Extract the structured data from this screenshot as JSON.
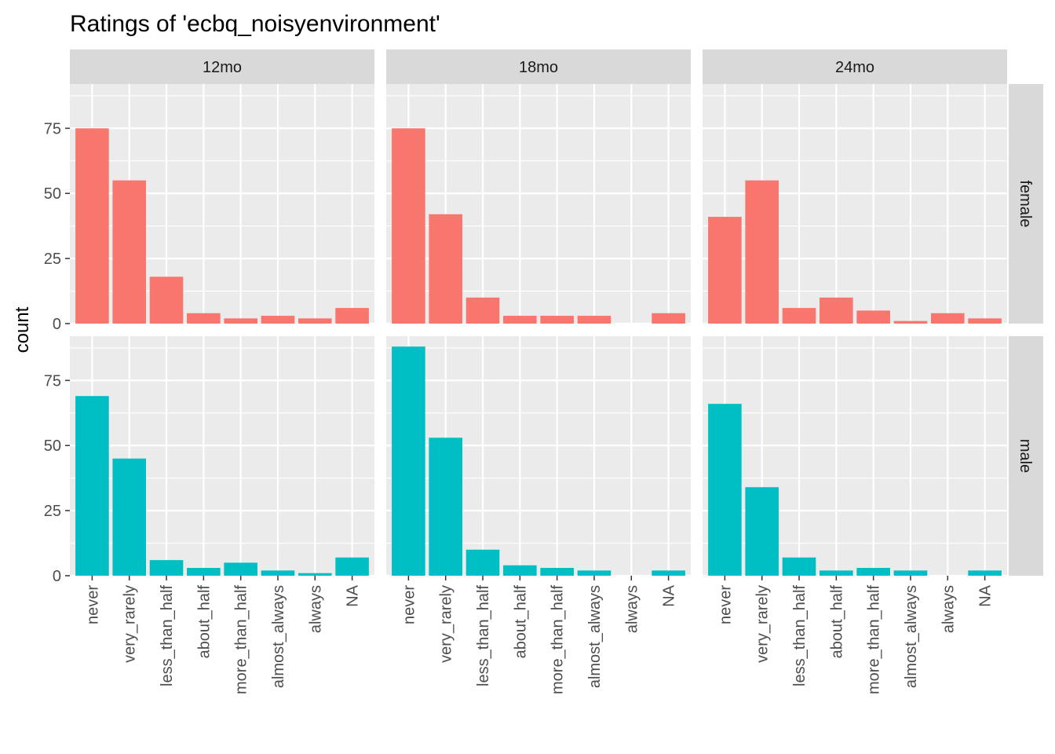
{
  "chart_data": {
    "type": "bar",
    "title": "Ratings of 'ecbq_noisyenvironment'",
    "xlabel": "",
    "ylabel": "count",
    "ylim": [
      0,
      92
    ],
    "yticks": [
      0,
      25,
      50,
      75
    ],
    "grid": true,
    "categories": [
      "never",
      "very_rarely",
      "less_than_half",
      "about_half",
      "more_than_half",
      "almost_always",
      "always",
      "NA"
    ],
    "facet_columns": [
      "12mo",
      "18mo",
      "24mo"
    ],
    "facet_rows": [
      "female",
      "male"
    ],
    "colors": {
      "female": "#F8766D",
      "male": "#00BFC4",
      "panel_bg": "#EBEBEB",
      "strip_bg": "#D9D9D9"
    },
    "panels": [
      {
        "column": "12mo",
        "row": "female",
        "values": [
          75,
          55,
          18,
          4,
          2,
          3,
          2,
          6
        ]
      },
      {
        "column": "18mo",
        "row": "female",
        "values": [
          75,
          42,
          10,
          3,
          3,
          3,
          0,
          4
        ]
      },
      {
        "column": "24mo",
        "row": "female",
        "values": [
          41,
          55,
          6,
          10,
          5,
          1,
          4,
          2
        ]
      },
      {
        "column": "12mo",
        "row": "male",
        "values": [
          69,
          45,
          6,
          3,
          5,
          2,
          1,
          7
        ]
      },
      {
        "column": "18mo",
        "row": "male",
        "values": [
          88,
          53,
          10,
          4,
          3,
          2,
          0,
          2
        ]
      },
      {
        "column": "24mo",
        "row": "male",
        "values": [
          66,
          34,
          7,
          2,
          3,
          2,
          0,
          2
        ]
      }
    ]
  }
}
